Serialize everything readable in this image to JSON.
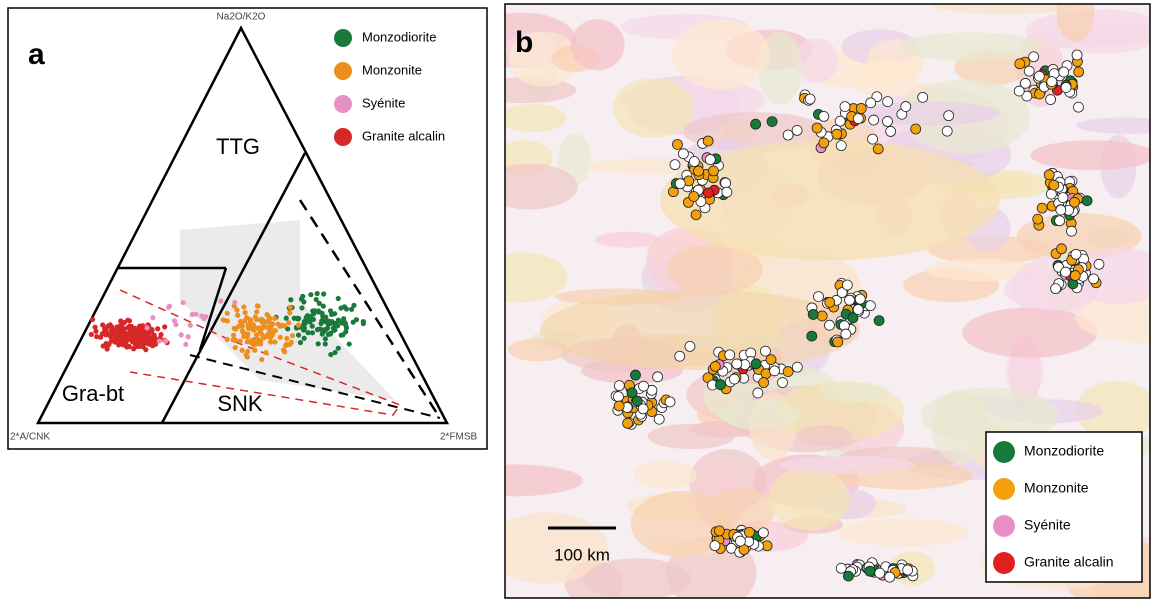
{
  "panel_a": {
    "label": "a",
    "apex_top": "Na2O/K2O",
    "apex_left": "2*A/CNK",
    "apex_right": "2*FMSB",
    "regions": [
      "TTG",
      "Gra-bt",
      "SNK"
    ],
    "legend": [
      {
        "name": "Monzodiorite",
        "color": "#1a7a3c"
      },
      {
        "name": "Monzonite",
        "color": "#ec8f1e"
      },
      {
        "name": "Syénite",
        "color": "#e690c4"
      },
      {
        "name": "Granite alcalin",
        "color": "#d62828"
      }
    ]
  },
  "panel_b": {
    "label": "b",
    "scale_bar": "100 km",
    "legend": [
      {
        "name": "Monzodiorite",
        "color": "#177a3a"
      },
      {
        "name": "Monzonite",
        "color": "#f4a00c"
      },
      {
        "name": "Syénite",
        "color": "#e890c6"
      },
      {
        "name": "Granite alcalin",
        "color": "#e02020"
      }
    ]
  }
}
